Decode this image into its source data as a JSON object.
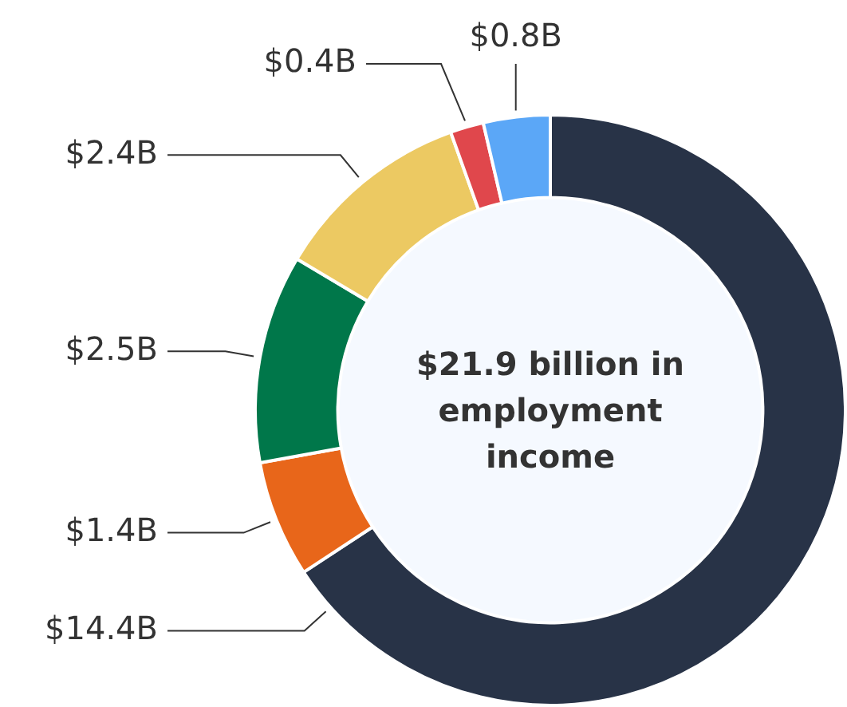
{
  "chart_data": {
    "type": "donut",
    "categories": [
      null,
      null,
      null,
      null,
      null,
      null
    ],
    "values": [
      14.4,
      1.4,
      2.5,
      2.4,
      0.4,
      0.8
    ],
    "colors": [
      "#283347",
      "#e8661a",
      "#00774a",
      "#ecc962",
      "#e0474c",
      "#5ba7f7"
    ],
    "value_labels": [
      "$14.4B",
      "$1.4B",
      "$2.5B",
      "$2.4B",
      "$0.4B",
      "$0.8B"
    ],
    "annotations": [
      "$21.9 billion in employment income"
    ],
    "legend": false
  }
}
